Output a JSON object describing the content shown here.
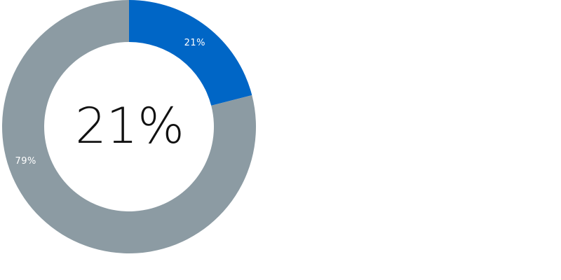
{
  "chart_data": {
    "type": "pie",
    "variant": "donut",
    "center_label": "21%",
    "slices": [
      {
        "value": 21,
        "label": "21%",
        "color": "#0066c6"
      },
      {
        "value": 79,
        "label": "79%",
        "color": "#8c9ba3"
      }
    ],
    "legend": "none"
  }
}
